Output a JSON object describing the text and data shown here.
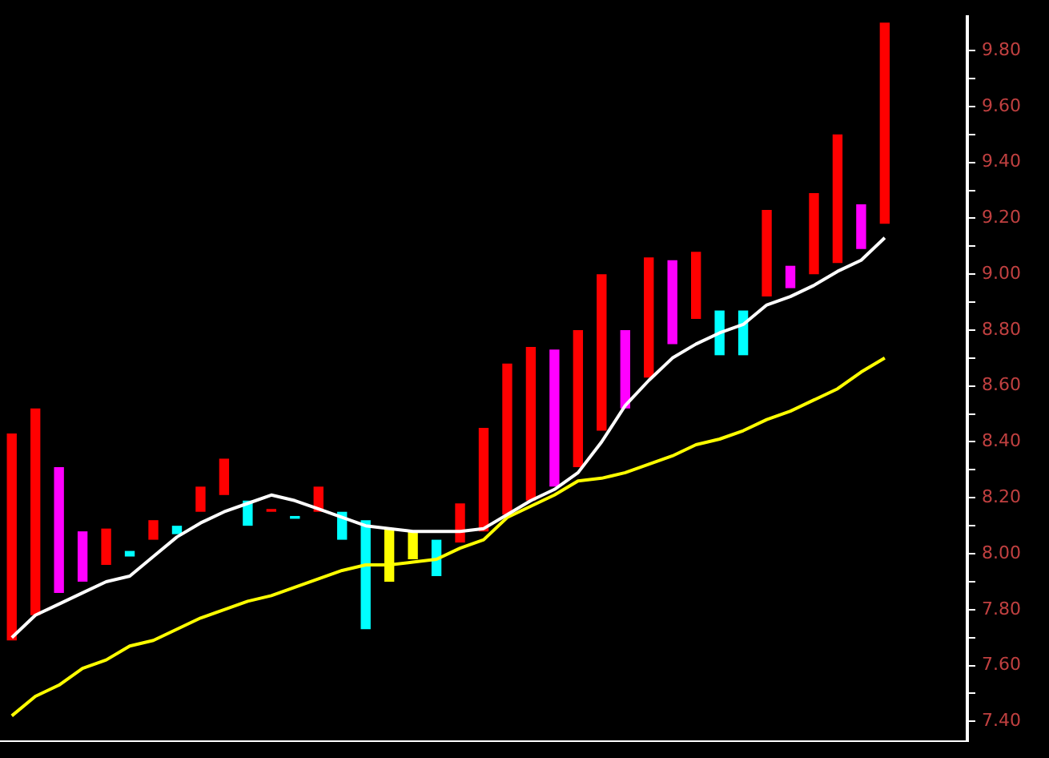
{
  "chart_data": {
    "type": "bar",
    "categories": [
      null,
      null,
      null,
      null,
      null,
      null,
      null,
      null,
      null,
      null,
      null,
      null,
      null,
      null,
      null,
      null,
      null,
      null,
      null,
      null,
      null,
      null,
      null,
      null,
      null,
      null,
      null,
      null,
      null,
      null,
      null,
      null,
      null,
      null,
      null,
      null,
      null,
      null,
      null,
      null,
      null
    ],
    "series": [
      {
        "values": [
          0.74,
          0.74,
          0.45,
          0.18,
          0.13,
          0.02,
          0.07,
          0.03,
          0.09,
          0.13,
          0.09,
          0.01,
          0.01,
          0.09,
          0.1,
          0.39,
          0.19,
          0.1,
          0.13,
          0.14,
          0.37,
          0.54,
          0.55,
          0.49,
          0.49,
          0.56,
          0.28,
          0.43,
          0.3,
          0.24,
          0.16,
          0.16,
          0.31,
          0.08,
          0.29,
          0.46,
          0.16,
          0.72,
          null,
          null,
          null
        ],
        "base": [
          7.69,
          7.78,
          7.86,
          7.9,
          7.96,
          7.99,
          8.05,
          8.07,
          8.15,
          8.21,
          8.1,
          8.15,
          8.125,
          8.15,
          8.05,
          7.73,
          7.9,
          7.98,
          7.92,
          8.04,
          8.08,
          8.14,
          8.19,
          8.24,
          8.31,
          8.44,
          8.52,
          8.63,
          8.75,
          8.84,
          8.71,
          8.71,
          8.92,
          8.95,
          9.0,
          9.04,
          9.09,
          9.18,
          null,
          null,
          null
        ],
        "colors": [
          "#ff0000",
          "#ff0000",
          "#ff00ff",
          "#ff00ff",
          "#ff0000",
          "#00ffff",
          "#ff0000",
          "#00ffff",
          "#ff0000",
          "#ff0000",
          "#00ffff",
          "#ff0000",
          "#00ffff",
          "#ff0000",
          "#00ffff",
          "#00ffff",
          "#ffff00",
          "#ffff00",
          "#00ffff",
          "#ff0000",
          "#ff0000",
          "#ff0000",
          "#ff0000",
          "#ff00ff",
          "#ff0000",
          "#ff0000",
          "#ff00ff",
          "#ff0000",
          "#ff00ff",
          "#ff0000",
          "#00ffff",
          "#00ffff",
          "#ff0000",
          "#ff00ff",
          "#ff0000",
          "#ff0000",
          "#ff00ff",
          "#ff0000",
          "#ff0000",
          "#ff0000",
          "#ff0000"
        ]
      },
      {
        "type": "line",
        "color": "#ffffff",
        "values": [
          7.7,
          7.78,
          7.82,
          7.86,
          7.9,
          7.92,
          7.99,
          8.06,
          8.11,
          8.15,
          8.18,
          8.21,
          8.19,
          8.16,
          8.13,
          8.1,
          8.09,
          8.08,
          8.08,
          8.08,
          8.09,
          8.14,
          8.19,
          8.23,
          8.29,
          8.4,
          8.53,
          8.62,
          8.7,
          8.75,
          8.79,
          8.82,
          8.89,
          8.92,
          8.96,
          9.01,
          9.05,
          9.13,
          null,
          null,
          null
        ]
      },
      {
        "type": "line",
        "color": "#ffff00",
        "values": [
          7.42,
          7.49,
          7.53,
          7.59,
          7.62,
          7.67,
          7.69,
          7.73,
          7.77,
          7.8,
          7.83,
          7.85,
          7.88,
          7.91,
          7.94,
          7.96,
          7.96,
          7.97,
          7.98,
          8.02,
          8.05,
          8.13,
          8.17,
          8.21,
          8.26,
          8.27,
          8.29,
          8.32,
          8.35,
          8.39,
          8.41,
          8.44,
          8.48,
          8.51,
          8.55,
          8.59,
          8.65,
          8.7,
          null,
          null,
          null
        ]
      }
    ],
    "ylim": [
      7.33,
      9.92
    ],
    "yticks": [
      {
        "value": 7.4,
        "label": "7.40"
      },
      {
        "value": 7.5,
        "label": null
      },
      {
        "value": 7.6,
        "label": "7.60"
      },
      {
        "value": 7.7,
        "label": null
      },
      {
        "value": 7.8,
        "label": "7.80"
      },
      {
        "value": 7.9,
        "label": null
      },
      {
        "value": 8.0,
        "label": "8.00"
      },
      {
        "value": 8.1,
        "label": null
      },
      {
        "value": 8.2,
        "label": "8.20"
      },
      {
        "value": 8.3,
        "label": null
      },
      {
        "value": 8.4,
        "label": "8.40"
      },
      {
        "value": 8.5,
        "label": null
      },
      {
        "value": 8.6,
        "label": "8.60"
      },
      {
        "value": 8.7,
        "label": null
      },
      {
        "value": 8.8,
        "label": "8.80"
      },
      {
        "value": 8.9,
        "label": null
      },
      {
        "value": 9.0,
        "label": "9.00"
      },
      {
        "value": 9.1,
        "label": null
      },
      {
        "value": 9.2,
        "label": "9.20"
      },
      {
        "value": 9.3,
        "label": null
      },
      {
        "value": 9.4,
        "label": "9.40"
      },
      {
        "value": 9.5,
        "label": null
      },
      {
        "value": 9.6,
        "label": "9.60"
      },
      {
        "value": 9.7,
        "label": null
      },
      {
        "value": 9.8,
        "label": "9.80"
      }
    ],
    "tick_labels": "y",
    "grid": false,
    "legend": false
  }
}
